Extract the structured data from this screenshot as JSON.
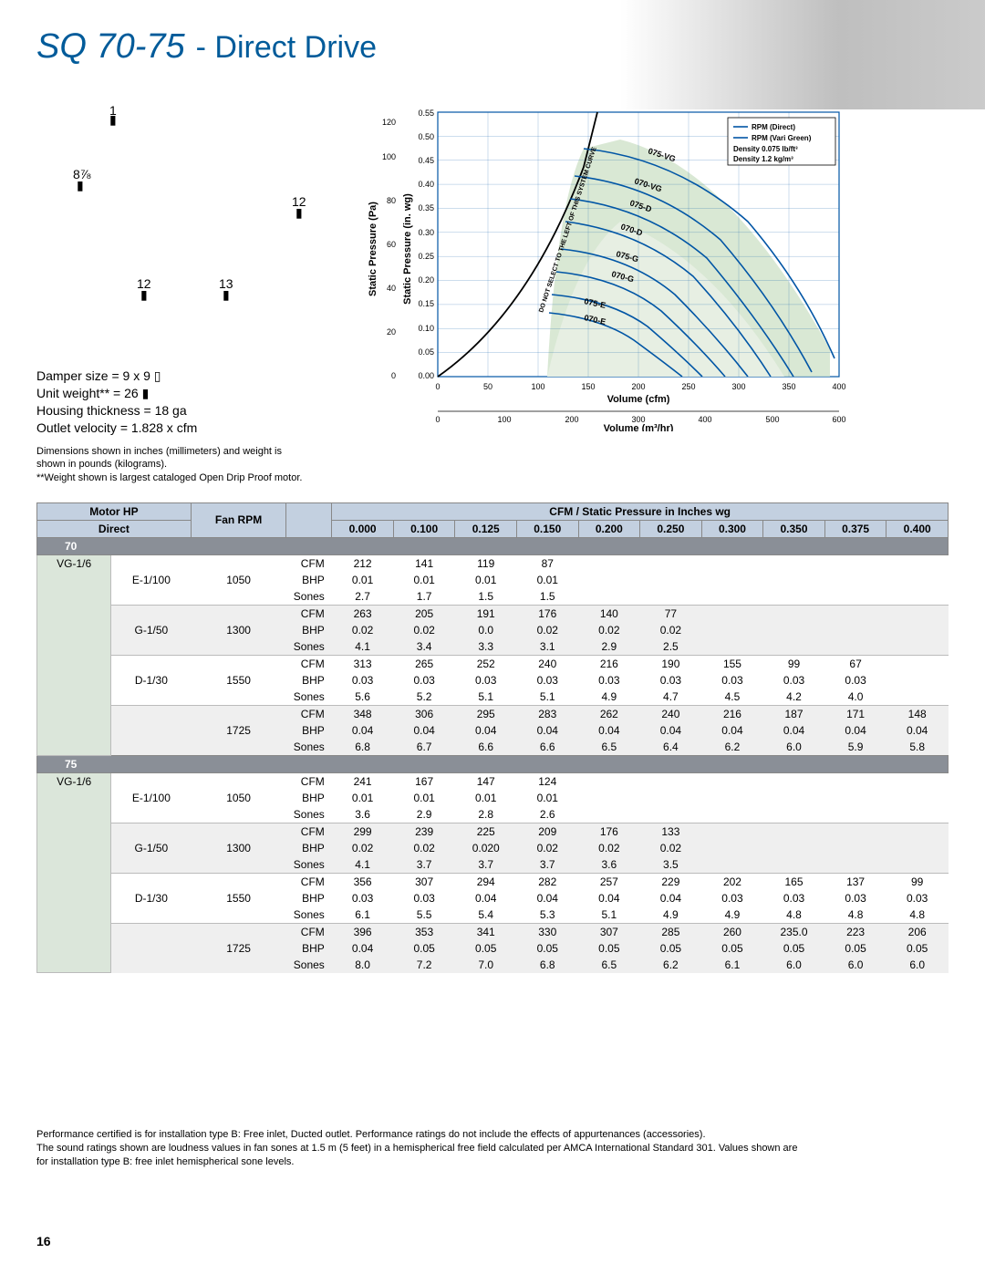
{
  "title": {
    "model": "SQ 70-75",
    "sub": "- Direct Drive"
  },
  "dims": {
    "d1": "1",
    "d2": "8⅞",
    "d3": "12",
    "d4": "12",
    "d5": "13"
  },
  "specs": {
    "damper": "Damper size = 9 x 9 ▯",
    "weight": "Unit weight** = 26 ▮",
    "housing": "Housing thickness = 18 ga",
    "outlet": "Outlet velocity = 1.828 x cfm"
  },
  "notes1": {
    "l1": "Dimensions shown in inches (millimeters) and weight is",
    "l2": "shown in pounds (kilograms).",
    "l3": "**Weight shown is largest cataloged Open Drip Proof motor."
  },
  "chart": {
    "y1_label": "Static Pressure (Pa)",
    "y2_label": "Static Pressure (in. wg)",
    "x1_label": "Volume (cfm)",
    "x2_label": "Volume (m³/hr)",
    "y_pa_ticks": [
      0,
      20,
      40,
      60,
      80,
      100,
      120
    ],
    "y_in_ticks": [
      "0.00",
      "0.05",
      "0.10",
      "0.15",
      "0.20",
      "0.25",
      "0.30",
      "0.35",
      "0.40",
      "0.45",
      "0.50",
      "0.55"
    ],
    "x_cfm_ticks": [
      0,
      50,
      100,
      150,
      200,
      250,
      300,
      350,
      400
    ],
    "x_m3_ticks": [
      0,
      100,
      200,
      300,
      400,
      500,
      600
    ],
    "legend": {
      "l1": "RPM (Direct)",
      "l2": "RPM (Vari Green)",
      "l3": "Density 0.075 lb/ft³",
      "l4": "Density 1.2 kg/m³"
    },
    "curve_labels": [
      "075-VG",
      "070-VG",
      "075-D",
      "070-D",
      "075-G",
      "070-G",
      "075-E",
      "070-E"
    ],
    "system_curve_note": "DO NOT SELECT TO THE LEFT OF THIS SYSTEM CURVE",
    "colors": {
      "grid": "#ffffff",
      "plot_bg": "#ffffff",
      "series": "#0055a5",
      "fill1": "#cfe2c9",
      "fill2": "#e8f0e4",
      "axis": "#0055a5",
      "text": "#000000"
    }
  },
  "table": {
    "hdr_motor": "Motor HP",
    "hdr_rpm": "Fan RPM",
    "hdr_cfm_sp": "CFM / Static Pressure in Inches wg",
    "hdr_direct": "Direct",
    "pressure_cols": [
      "0.000",
      "0.100",
      "0.125",
      "0.150",
      "0.200",
      "0.250",
      "0.300",
      "0.350",
      "0.375",
      "0.400"
    ],
    "models": [
      {
        "name": "70",
        "vg": "VG-1/6",
        "rows": [
          {
            "motor": "E-1/100",
            "rpm": "1050",
            "metrics": [
              {
                "n": "CFM",
                "v": [
                  "212",
                  "141",
                  "119",
                  "87",
                  "",
                  "",
                  "",
                  "",
                  "",
                  ""
                ]
              },
              {
                "n": "BHP",
                "v": [
                  "0.01",
                  "0.01",
                  "0.01",
                  "0.01",
                  "",
                  "",
                  "",
                  "",
                  "",
                  ""
                ]
              },
              {
                "n": "Sones",
                "v": [
                  "2.7",
                  "1.7",
                  "1.5",
                  "1.5",
                  "",
                  "",
                  "",
                  "",
                  "",
                  ""
                ]
              }
            ]
          },
          {
            "motor": "G-1/50",
            "rpm": "1300",
            "metrics": [
              {
                "n": "CFM",
                "v": [
                  "263",
                  "205",
                  "191",
                  "176",
                  "140",
                  "77",
                  "",
                  "",
                  "",
                  ""
                ]
              },
              {
                "n": "BHP",
                "v": [
                  "0.02",
                  "0.02",
                  "0.0",
                  "0.02",
                  "0.02",
                  "0.02",
                  "",
                  "",
                  "",
                  ""
                ]
              },
              {
                "n": "Sones",
                "v": [
                  "4.1",
                  "3.4",
                  "3.3",
                  "3.1",
                  "2.9",
                  "2.5",
                  "",
                  "",
                  "",
                  ""
                ]
              }
            ]
          },
          {
            "motor": "D-1/30",
            "rpm": "1550",
            "metrics": [
              {
                "n": "CFM",
                "v": [
                  "313",
                  "265",
                  "252",
                  "240",
                  "216",
                  "190",
                  "155",
                  "99",
                  "67",
                  ""
                ]
              },
              {
                "n": "BHP",
                "v": [
                  "0.03",
                  "0.03",
                  "0.03",
                  "0.03",
                  "0.03",
                  "0.03",
                  "0.03",
                  "0.03",
                  "0.03",
                  ""
                ]
              },
              {
                "n": "Sones",
                "v": [
                  "5.6",
                  "5.2",
                  "5.1",
                  "5.1",
                  "4.9",
                  "4.7",
                  "4.5",
                  "4.2",
                  "4.0",
                  ""
                ]
              }
            ]
          },
          {
            "motor": "",
            "rpm": "1725",
            "metrics": [
              {
                "n": "CFM",
                "v": [
                  "348",
                  "306",
                  "295",
                  "283",
                  "262",
                  "240",
                  "216",
                  "187",
                  "171",
                  "148"
                ]
              },
              {
                "n": "BHP",
                "v": [
                  "0.04",
                  "0.04",
                  "0.04",
                  "0.04",
                  "0.04",
                  "0.04",
                  "0.04",
                  "0.04",
                  "0.04",
                  "0.04"
                ]
              },
              {
                "n": "Sones",
                "v": [
                  "6.8",
                  "6.7",
                  "6.6",
                  "6.6",
                  "6.5",
                  "6.4",
                  "6.2",
                  "6.0",
                  "5.9",
                  "5.8"
                ]
              }
            ]
          }
        ]
      },
      {
        "name": "75",
        "vg": "VG-1/6",
        "rows": [
          {
            "motor": "E-1/100",
            "rpm": "1050",
            "metrics": [
              {
                "n": "CFM",
                "v": [
                  "241",
                  "167",
                  "147",
                  "124",
                  "",
                  "",
                  "",
                  "",
                  "",
                  ""
                ]
              },
              {
                "n": "BHP",
                "v": [
                  "0.01",
                  "0.01",
                  "0.01",
                  "0.01",
                  "",
                  "",
                  "",
                  "",
                  "",
                  ""
                ]
              },
              {
                "n": "Sones",
                "v": [
                  "3.6",
                  "2.9",
                  "2.8",
                  "2.6",
                  "",
                  "",
                  "",
                  "",
                  "",
                  ""
                ]
              }
            ]
          },
          {
            "motor": "G-1/50",
            "rpm": "1300",
            "metrics": [
              {
                "n": "CFM",
                "v": [
                  "299",
                  "239",
                  "225",
                  "209",
                  "176",
                  "133",
                  "",
                  "",
                  "",
                  ""
                ]
              },
              {
                "n": "BHP",
                "v": [
                  "0.02",
                  "0.02",
                  "0.020",
                  "0.02",
                  "0.02",
                  "0.02",
                  "",
                  "",
                  "",
                  ""
                ]
              },
              {
                "n": "Sones",
                "v": [
                  "4.1",
                  "3.7",
                  "3.7",
                  "3.7",
                  "3.6",
                  "3.5",
                  "",
                  "",
                  "",
                  ""
                ]
              }
            ]
          },
          {
            "motor": "D-1/30",
            "rpm": "1550",
            "metrics": [
              {
                "n": "CFM",
                "v": [
                  "356",
                  "307",
                  "294",
                  "282",
                  "257",
                  "229",
                  "202",
                  "165",
                  "137",
                  "99"
                ]
              },
              {
                "n": "BHP",
                "v": [
                  "0.03",
                  "0.03",
                  "0.04",
                  "0.04",
                  "0.04",
                  "0.04",
                  "0.03",
                  "0.03",
                  "0.03",
                  "0.03"
                ]
              },
              {
                "n": "Sones",
                "v": [
                  "6.1",
                  "5.5",
                  "5.4",
                  "5.3",
                  "5.1",
                  "4.9",
                  "4.9",
                  "4.8",
                  "4.8",
                  "4.8"
                ]
              }
            ]
          },
          {
            "motor": "",
            "rpm": "1725",
            "metrics": [
              {
                "n": "CFM",
                "v": [
                  "396",
                  "353",
                  "341",
                  "330",
                  "307",
                  "285",
                  "260",
                  "235.0",
                  "223",
                  "206"
                ]
              },
              {
                "n": "BHP",
                "v": [
                  "0.04",
                  "0.05",
                  "0.05",
                  "0.05",
                  "0.05",
                  "0.05",
                  "0.05",
                  "0.05",
                  "0.05",
                  "0.05"
                ]
              },
              {
                "n": "Sones",
                "v": [
                  "8.0",
                  "7.2",
                  "7.0",
                  "6.8",
                  "6.5",
                  "6.2",
                  "6.1",
                  "6.0",
                  "6.0",
                  "6.0"
                ]
              }
            ]
          }
        ]
      }
    ]
  },
  "footnotes": {
    "l1": "Performance certified is for installation type B: Free inlet, Ducted outlet. Performance ratings do not include the effects of appurtenances (accessories).",
    "l2": "The sound ratings shown are loudness values in fan sones at 1.5 m (5 feet) in a hemispherical free field calculated per AMCA International Standard 301. Values shown are",
    "l3": "for installation type B: free inlet hemispherical sone levels."
  },
  "page_num": "16"
}
